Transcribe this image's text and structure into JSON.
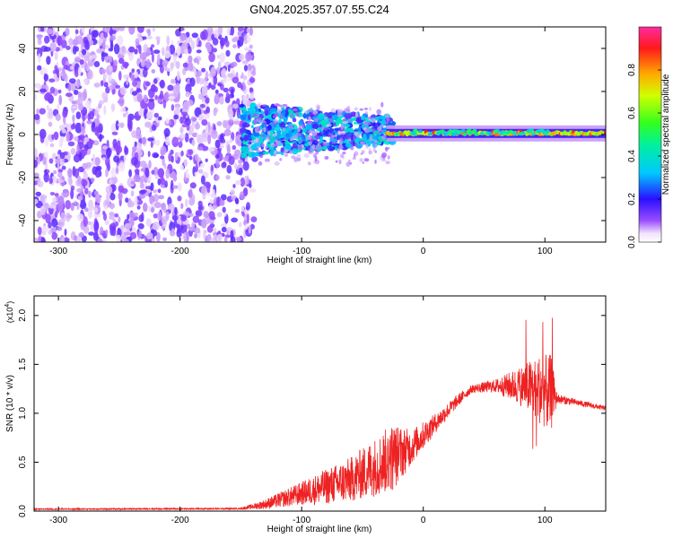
{
  "title": "GN04.2025.357.07.55.C24",
  "colors": {
    "snr_line": "#ee2222",
    "spectrogram_background": "#ffffff"
  },
  "colorbar": {
    "label": "Normalized spectral amplitude",
    "ticks": [
      "0.0",
      "0.2",
      "0.4",
      "0.6",
      "0.8"
    ],
    "tick_values": [
      0.0,
      0.2,
      0.4,
      0.6,
      0.8
    ],
    "range": [
      0,
      1
    ],
    "colormap": "rainbow (violet-blue-cyan-green-yellow-red-magenta)"
  },
  "chart_data": [
    {
      "type": "heatmap",
      "name": "spectrogram",
      "xlabel": "Height of straight line (km)",
      "ylabel": "Frequency (Hz)",
      "xlim": [
        -320,
        150
      ],
      "ylim": [
        -50,
        50
      ],
      "xticks": [
        -300,
        -200,
        -100,
        0,
        100
      ],
      "xtick_labels": [
        "-300",
        "-200",
        "-100",
        "0",
        "100"
      ],
      "yticks": [
        -40,
        -20,
        0,
        20,
        40
      ],
      "ytick_labels": [
        "-40",
        "-20",
        "0",
        "20",
        "40"
      ],
      "bands": [
        {
          "x_range": [
            -320,
            -140
          ],
          "freq_range": [
            -50,
            50
          ],
          "amplitude": 0.08
        },
        {
          "x_range": [
            -140,
            -30
          ],
          "freq_range": [
            -10,
            10
          ],
          "amplitude": 0.3
        },
        {
          "x_range": [
            -30,
            150
          ],
          "freq_range": [
            -3,
            3
          ],
          "amplitude": 0.75
        }
      ]
    },
    {
      "type": "line",
      "name": "snr",
      "xlabel": "Height of straight line (km)",
      "ylabel": "SNR (10 * v/v)",
      "yscale_label": "(x10",
      "yscale_exp": "4",
      "xlim": [
        -320,
        150
      ],
      "ylim": [
        0,
        22000
      ],
      "xticks": [
        -300,
        -200,
        -100,
        0,
        100
      ],
      "xtick_labels": [
        "-300",
        "-200",
        "-100",
        "0",
        "100"
      ],
      "yticks": [
        0,
        5000,
        10000,
        15000,
        20000
      ],
      "ytick_labels": [
        "0.0",
        "0.5",
        "1.0",
        "1.5",
        "2.0"
      ],
      "envelope": {
        "x": [
          -320,
          -150,
          -130,
          -100,
          -80,
          -60,
          -40,
          -25,
          -10,
          10,
          30,
          40,
          60,
          80,
          95,
          105,
          110,
          130,
          150
        ],
        "y": [
          200,
          250,
          700,
          1800,
          2500,
          3200,
          4500,
          5500,
          6500,
          9000,
          11500,
          12500,
          12800,
          12800,
          12500,
          12000,
          11500,
          11000,
          10500
        ],
        "amp": [
          60,
          80,
          500,
          1200,
          1800,
          2300,
          3000,
          3500,
          1800,
          1000,
          600,
          400,
          700,
          2000,
          3500,
          4000,
          500,
          300,
          250
        ]
      }
    }
  ]
}
